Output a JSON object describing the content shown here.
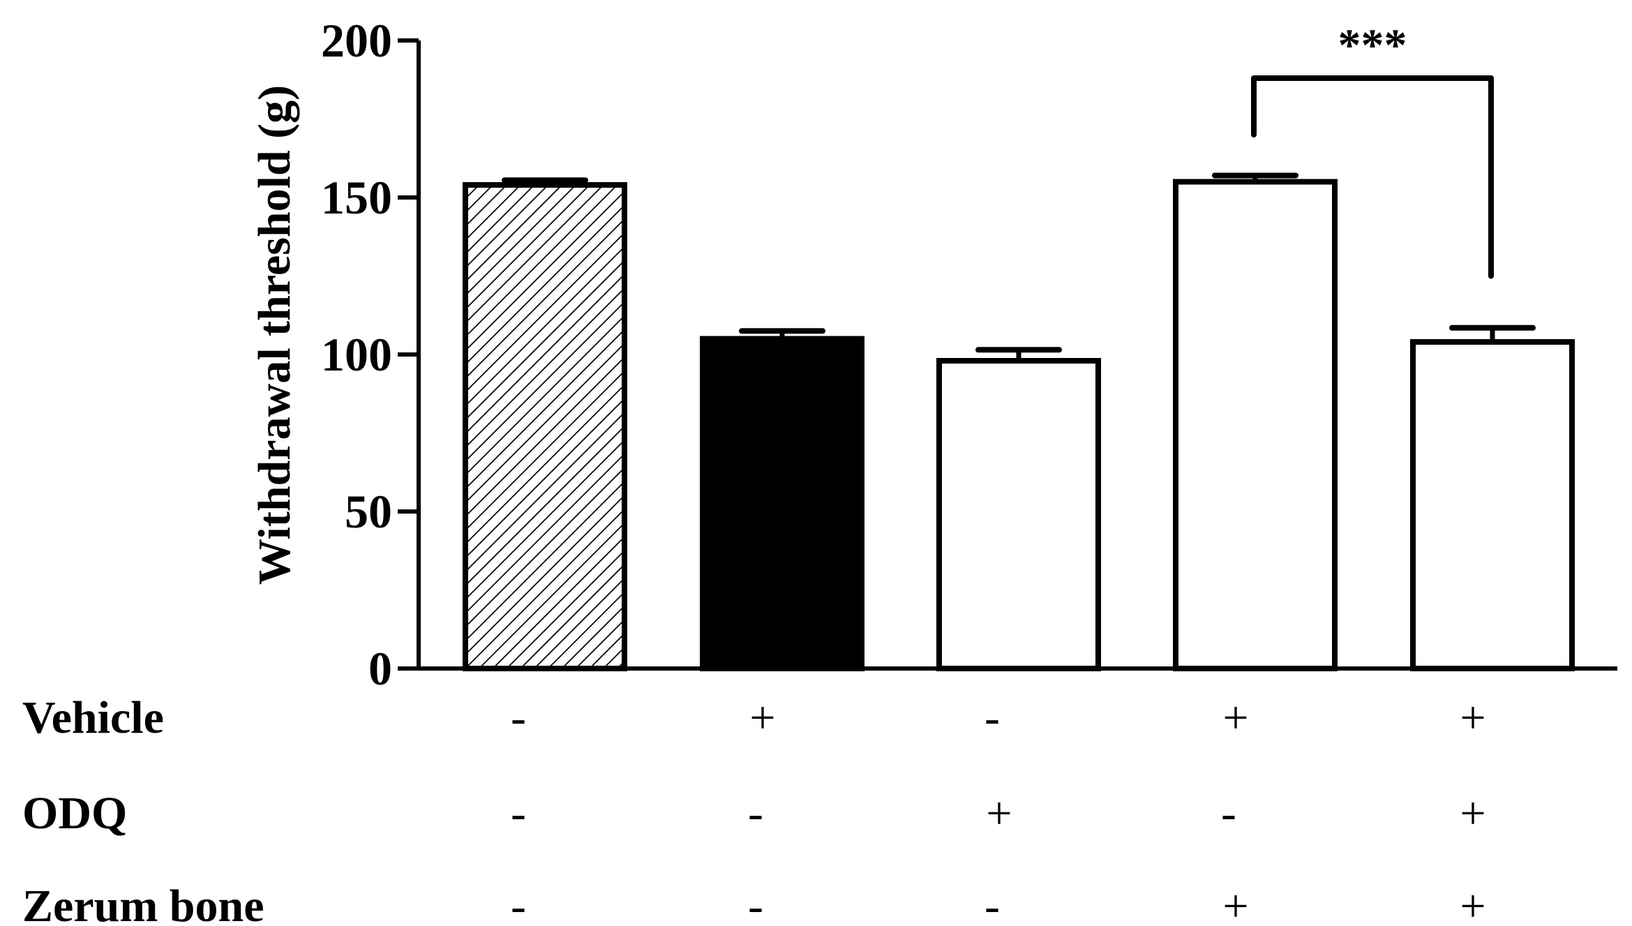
{
  "chart_data": {
    "type": "bar",
    "title": "",
    "ylabel": "Withdrawal threshold (g)",
    "ylim": [
      0,
      200
    ],
    "yticks": [
      0,
      50,
      100,
      150,
      200
    ],
    "grid": false,
    "bars": [
      {
        "value": 154,
        "error": 1.5,
        "fill": "hatched"
      },
      {
        "value": 105,
        "error": 2.5,
        "fill": "solid-black"
      },
      {
        "value": 98,
        "error": 3.5,
        "fill": "white"
      },
      {
        "value": 155,
        "error": 2,
        "fill": "white"
      },
      {
        "value": 104,
        "error": 4.5,
        "fill": "white"
      }
    ],
    "treatment_rows": [
      {
        "label": "Vehicle",
        "signs": [
          "-",
          "+",
          "-",
          "+",
          "+"
        ]
      },
      {
        "label": "ODQ",
        "signs": [
          "-",
          "-",
          "+",
          "-",
          "+"
        ]
      },
      {
        "label": "Zerum bone",
        "signs": [
          "-",
          "-",
          "-",
          "+",
          "+"
        ]
      }
    ],
    "significance": {
      "between": [
        3,
        4
      ],
      "label": "***"
    }
  },
  "colors": {
    "ink": "#000000",
    "background": "#ffffff"
  }
}
